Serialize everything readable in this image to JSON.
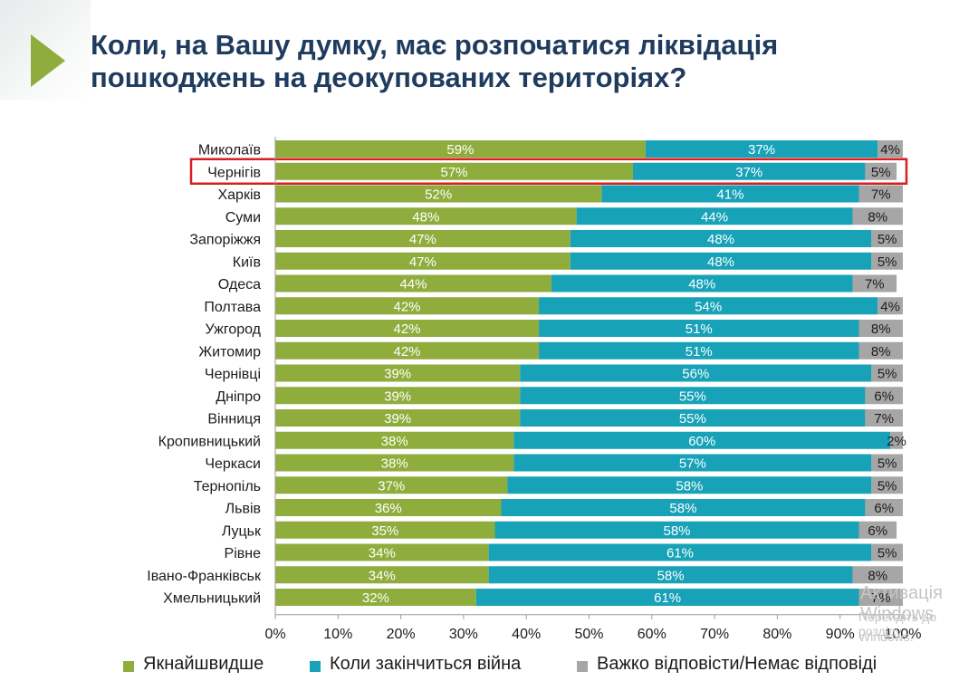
{
  "title": {
    "line1": "Коли, на Вашу думку, має розпочатися ліквідація",
    "line2": "пошкоджень на деокупованих територіях?"
  },
  "colors": {
    "asap": "#8fad3c",
    "war_end": "#17a2b8",
    "dont_know": "#a6a6a6",
    "title": "#1f3b5e",
    "highlight": "#d62020"
  },
  "chart_data": {
    "type": "bar",
    "orientation": "horizontal",
    "stacked": true,
    "categories": [
      "Миколаїв",
      "Чернігів",
      "Харків",
      "Суми",
      "Запоріжжя",
      "Київ",
      "Одеса",
      "Полтава",
      "Ужгород",
      "Житомир",
      "Чернівці",
      "Дніпро",
      "Вінниця",
      "Кропивницький",
      "Черкаси",
      "Тернопіль",
      "Львів",
      "Луцьк",
      "Рівне",
      "Івано-Франківськ",
      "Хмельницький"
    ],
    "series": [
      {
        "name": "Якнайшвидше",
        "values": [
          59,
          57,
          52,
          48,
          47,
          47,
          44,
          42,
          42,
          42,
          39,
          39,
          39,
          38,
          38,
          37,
          36,
          35,
          34,
          34,
          32
        ]
      },
      {
        "name": "Коли закінчиться війна",
        "values": [
          37,
          37,
          41,
          44,
          48,
          48,
          48,
          54,
          51,
          51,
          56,
          55,
          55,
          60,
          57,
          58,
          58,
          58,
          61,
          58,
          61
        ]
      },
      {
        "name": "Важко відповісти/Немає відповіді",
        "values": [
          4,
          5,
          7,
          8,
          5,
          5,
          7,
          4,
          8,
          8,
          5,
          6,
          7,
          2,
          5,
          5,
          6,
          6,
          5,
          8,
          7
        ]
      }
    ],
    "x_ticks": [
      "0%",
      "10%",
      "20%",
      "30%",
      "40%",
      "50%",
      "60%",
      "70%",
      "80%",
      "90%",
      "100%"
    ],
    "xlim": [
      0,
      100
    ],
    "highlighted_category": "Чернігів",
    "legend_position": "bottom"
  },
  "watermark": {
    "line1": "Активація Windows",
    "line2": "Перейдіть до розділу",
    "line3": "Windows."
  }
}
